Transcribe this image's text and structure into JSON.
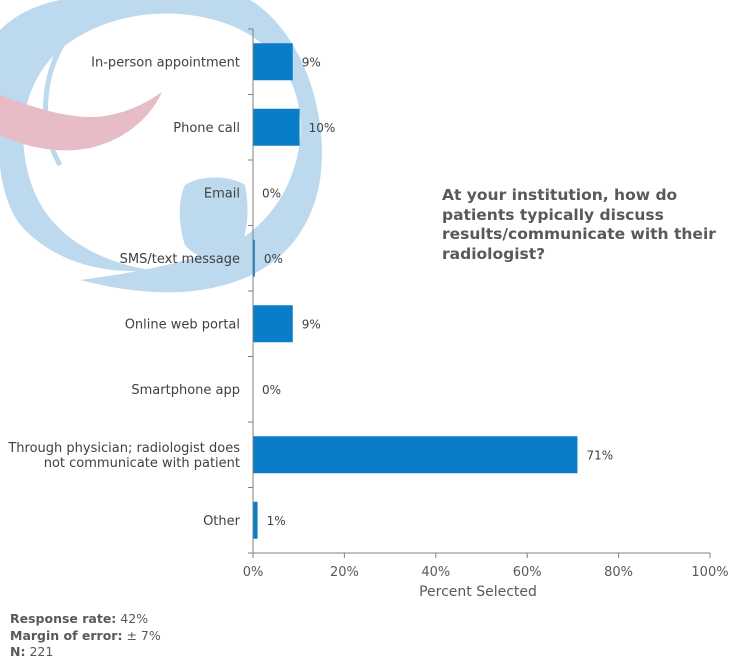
{
  "question": "At your institution, how do patients typically discuss results/communicate with their radiologist?",
  "footer": {
    "response_rate_label": "Response rate:",
    "response_rate_value": "42%",
    "margin_label": "Margin of error:",
    "margin_value": "± 7%",
    "n_label": "N:",
    "n_value": "221"
  },
  "colors": {
    "bar": "#0a7dc9",
    "watermark_blue": "#bcd9ee",
    "watermark_pink": "#e8bcc6",
    "axis": "#808080"
  },
  "chart_data": {
    "type": "bar",
    "orientation": "horizontal",
    "title": "At your institution, how do patients typically discuss results/communicate with their radiologist?",
    "xlabel": "Percent Selected",
    "ylabel": "",
    "xlim": [
      0,
      100
    ],
    "xticks": [
      0,
      20,
      40,
      60,
      80,
      100
    ],
    "xtick_labels": [
      "0%",
      "20%",
      "40%",
      "60%",
      "80%",
      "100%"
    ],
    "grid": false,
    "categories": [
      [
        "In-person appointment"
      ],
      [
        "Phone call"
      ],
      [
        "Email"
      ],
      [
        "SMS/text message"
      ],
      [
        "Online web portal"
      ],
      [
        "Smartphone app"
      ],
      [
        "Through physician; radiologist does",
        "not communicate with patient"
      ],
      [
        "Other"
      ]
    ],
    "values": [
      8.7,
      10.2,
      0,
      0.4,
      8.7,
      0,
      71.0,
      1.0
    ],
    "data_labels": [
      "9%",
      "10%",
      "0%",
      "0%",
      "9%",
      "0%",
      "71%",
      "1%"
    ]
  }
}
